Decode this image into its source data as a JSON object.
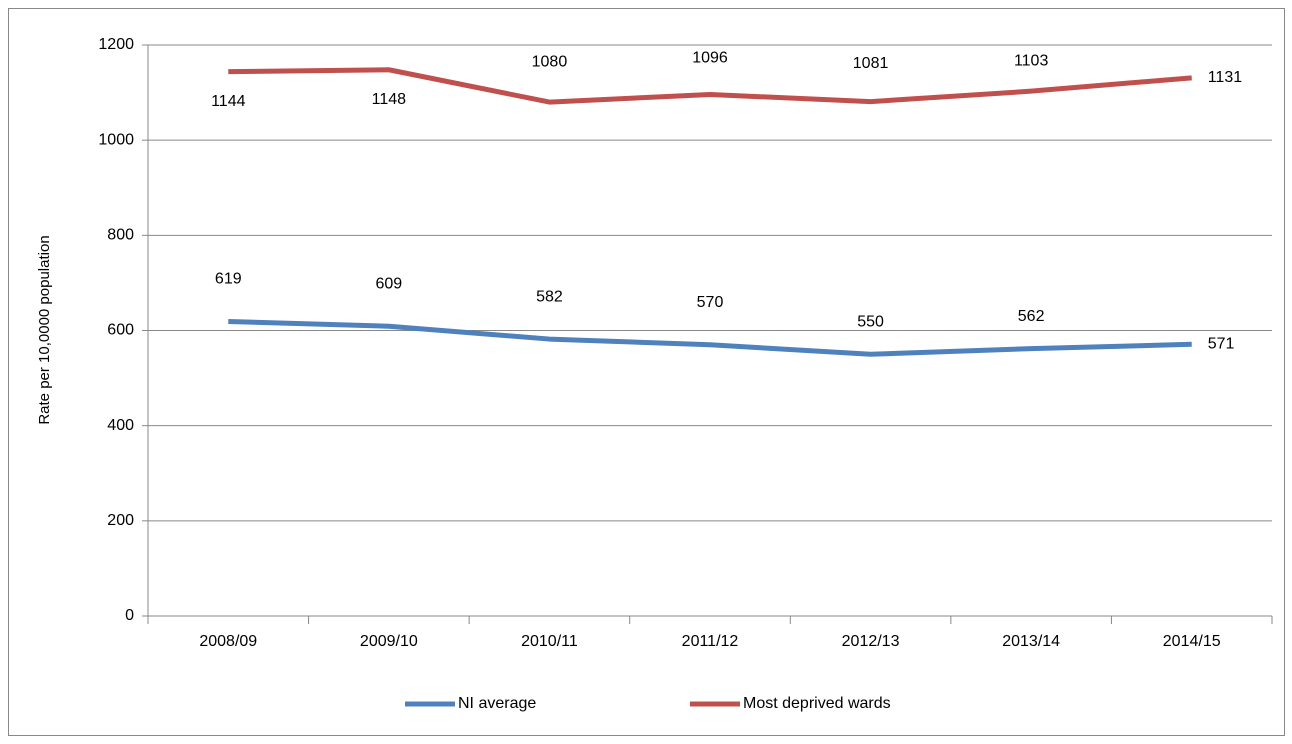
{
  "chart_data": {
    "type": "line",
    "y_label": "Rate per 10,0000 population",
    "categories": [
      "2008/09",
      "2009/10",
      "2010/11",
      "2011/12",
      "2012/13",
      "2013/14",
      "2014/15"
    ],
    "series": [
      {
        "name": "NI average",
        "color": "#4f81bd",
        "values": [
          619,
          609,
          582,
          570,
          550,
          562,
          571
        ]
      },
      {
        "name": "Most deprived wards",
        "color": "#c0504d",
        "values": [
          1144,
          1148,
          1080,
          1096,
          1081,
          1103,
          1131
        ]
      }
    ],
    "ylim": [
      0,
      1200
    ],
    "yticks": [
      0,
      200,
      400,
      600,
      800,
      1000,
      1200
    ],
    "grid": true,
    "legend": "bottom",
    "data_labels": true
  }
}
